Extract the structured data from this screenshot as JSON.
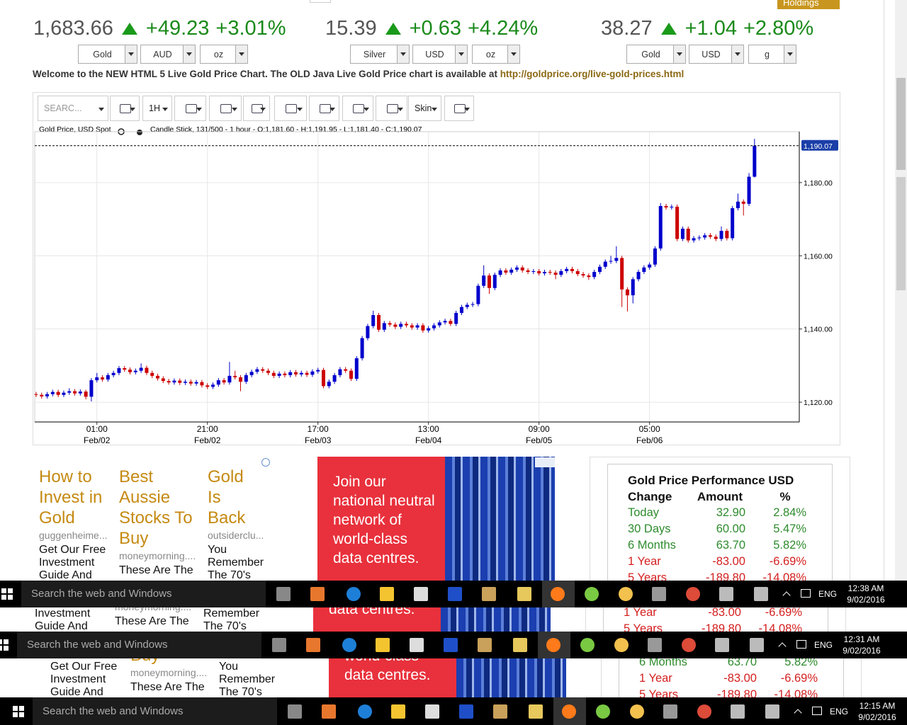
{
  "tickers": [
    {
      "price": "1,683.66",
      "change": "+49.23",
      "percent": "+3.01%",
      "selects": [
        "Gold",
        "AUD",
        "oz"
      ]
    },
    {
      "price": "15.39",
      "change": "+0.63",
      "percent": "+4.24%",
      "selects": [
        "Silver",
        "USD",
        "oz"
      ]
    },
    {
      "price": "38.27",
      "change": "+1.04",
      "percent": "+2.80%",
      "selects": [
        "Gold",
        "USD",
        "g"
      ]
    }
  ],
  "holdings": "Holdings",
  "welcome": "Welcome to the NEW HTML 5 Live Gold Price Chart. The OLD Java Live Gold Price chart is available at ",
  "welcome_link": "http://goldprice.org/live-gold-prices.html",
  "toolbar": {
    "search": "SEARC...",
    "interval": "1H",
    "skin": "Skin"
  },
  "chart_data": {
    "type": "candlestick",
    "title": "Gold Price, USD Spot",
    "subtitle": "Candle Stick, 131/500 - 1 hour - O:1,181.60 - H:1,191.95 - L:1,181.40 - C:1,190.07",
    "up_color": "#0000cc",
    "down_color": "#cc0000",
    "grid": true,
    "open": [
      1122.2,
      1122.0,
      1121.6,
      1122.2,
      1122.8,
      1122.0,
      1122.6,
      1123.0,
      1122.4,
      1122.9,
      1121.5,
      1126.0,
      1126.8,
      1126.2,
      1127.4,
      1128.0,
      1129.3,
      1128.9,
      1128.2,
      1128.6,
      1129.4,
      1128.0,
      1127.2,
      1126.5,
      1125.8,
      1125.4,
      1125.9,
      1125.3,
      1125.6,
      1125.1,
      1125.5,
      1124.6,
      1124.2,
      1124.8,
      1126.0,
      1125.4,
      1127.2,
      1126.8,
      1125.6,
      1127.4,
      1128.3,
      1129.0,
      1128.6,
      1128.0,
      1127.2,
      1127.8,
      1127.4,
      1128.2,
      1127.6,
      1128.0,
      1127.5,
      1128.4,
      1128.8,
      1124.4,
      1125.6,
      1127.4,
      1129.0,
      1128.6,
      1126.4,
      1132.0,
      1137.5,
      1140.8,
      1143.8,
      1139.8,
      1141.6,
      1141.2,
      1140.6,
      1141.4,
      1141.0,
      1140.4,
      1141.0,
      1139.6,
      1140.2,
      1141.0,
      1141.8,
      1142.2,
      1141.4,
      1144.4,
      1146.0,
      1146.6,
      1146.8,
      1151.8,
      1154.6,
      1151.2,
      1154.8,
      1156.0,
      1155.4,
      1156.2,
      1156.8,
      1156.0,
      1155.6,
      1155.8,
      1155.2,
      1155.6,
      1155.4,
      1154.8,
      1155.8,
      1156.4,
      1155.8,
      1155.0,
      1154.6,
      1154.2,
      1155.6,
      1157.0,
      1158.4,
      1158.6,
      1159.4,
      1150.8,
      1149.2,
      1153.6,
      1155.6,
      1156.8,
      1157.6,
      1162.0,
      1173.6,
      1173.2,
      1173.4,
      1164.6,
      1167.4,
      1164.2,
      1164.8,
      1165.0,
      1165.6,
      1165.2,
      1164.6,
      1166.8,
      1164.8,
      1173.0,
      1174.8,
      1174.2,
      1181.6
    ],
    "high": [
      1122.8,
      1122.6,
      1122.8,
      1123.4,
      1123.4,
      1123.2,
      1123.8,
      1123.6,
      1123.5,
      1123.4,
      1126.6,
      1128.0,
      1127.4,
      1128.0,
      1128.6,
      1129.9,
      1129.9,
      1129.5,
      1129.2,
      1130.6,
      1130.0,
      1128.6,
      1127.8,
      1127.1,
      1126.4,
      1126.5,
      1126.5,
      1126.2,
      1126.2,
      1126.1,
      1126.1,
      1125.2,
      1125.4,
      1126.6,
      1126.6,
      1131.0,
      1128.6,
      1127.4,
      1128.0,
      1128.9,
      1129.6,
      1129.6,
      1129.2,
      1128.6,
      1128.4,
      1128.4,
      1128.8,
      1128.8,
      1128.6,
      1128.6,
      1129.0,
      1129.4,
      1129.4,
      1126.2,
      1128.0,
      1129.6,
      1129.6,
      1129.2,
      1132.6,
      1138.1,
      1141.4,
      1145.0,
      1144.4,
      1142.2,
      1142.2,
      1141.8,
      1142.0,
      1142.0,
      1141.6,
      1141.6,
      1141.6,
      1140.8,
      1141.6,
      1142.4,
      1142.8,
      1142.8,
      1145.0,
      1146.6,
      1147.2,
      1147.4,
      1152.4,
      1157.4,
      1155.2,
      1155.4,
      1156.6,
      1156.6,
      1156.8,
      1157.4,
      1157.4,
      1156.6,
      1156.4,
      1156.4,
      1156.2,
      1156.2,
      1156.0,
      1156.4,
      1157.0,
      1157.0,
      1156.4,
      1155.6,
      1155.2,
      1156.2,
      1157.6,
      1159.0,
      1160.0,
      1162.6,
      1160.0,
      1151.4,
      1154.2,
      1156.2,
      1157.4,
      1158.2,
      1162.6,
      1174.4,
      1174.2,
      1174.0,
      1174.0,
      1168.0,
      1168.0,
      1165.4,
      1165.6,
      1166.2,
      1166.2,
      1165.8,
      1168.0,
      1167.4,
      1173.6,
      1177.0,
      1175.4,
      1182.6,
      1191.95
    ],
    "low": [
      1121.4,
      1121.0,
      1121.0,
      1121.6,
      1121.4,
      1121.4,
      1122.0,
      1121.8,
      1121.8,
      1120.8,
      1120.2,
      1125.4,
      1125.6,
      1125.6,
      1126.8,
      1127.4,
      1128.3,
      1127.6,
      1127.6,
      1128.0,
      1127.4,
      1126.6,
      1125.9,
      1125.2,
      1124.8,
      1124.8,
      1124.7,
      1124.7,
      1124.5,
      1124.5,
      1124.0,
      1123.6,
      1123.6,
      1124.2,
      1124.8,
      1124.8,
      1126.2,
      1123.0,
      1125.0,
      1126.8,
      1127.7,
      1128.0,
      1127.4,
      1126.6,
      1126.6,
      1126.8,
      1126.8,
      1127.0,
      1127.0,
      1126.9,
      1126.9,
      1127.8,
      1123.8,
      1123.8,
      1125.0,
      1126.8,
      1128.0,
      1125.8,
      1125.8,
      1131.4,
      1136.9,
      1140.2,
      1139.2,
      1139.2,
      1140.6,
      1140.0,
      1140.0,
      1140.4,
      1139.8,
      1139.8,
      1139.0,
      1139.0,
      1139.6,
      1140.4,
      1141.2,
      1140.8,
      1140.8,
      1143.8,
      1145.4,
      1146.0,
      1146.2,
      1151.2,
      1149.6,
      1150.6,
      1154.2,
      1154.8,
      1154.8,
      1155.6,
      1155.4,
      1155.0,
      1155.0,
      1154.6,
      1154.6,
      1154.8,
      1153.6,
      1154.2,
      1155.2,
      1155.2,
      1154.4,
      1154.0,
      1153.4,
      1153.6,
      1155.0,
      1156.4,
      1157.8,
      1158.0,
      1146.0,
      1144.8,
      1147.0,
      1153.0,
      1155.0,
      1156.2,
      1157.0,
      1161.4,
      1172.6,
      1172.6,
      1164.0,
      1164.0,
      1163.6,
      1163.6,
      1164.2,
      1164.4,
      1164.6,
      1164.0,
      1164.0,
      1164.2,
      1164.2,
      1172.4,
      1171.0,
      1173.6,
      1181.4
    ],
    "close": [
      1122.0,
      1121.6,
      1122.2,
      1122.8,
      1122.0,
      1122.6,
      1123.0,
      1122.4,
      1122.9,
      1121.5,
      1126.0,
      1126.8,
      1126.2,
      1127.4,
      1128.0,
      1129.3,
      1128.9,
      1128.2,
      1128.6,
      1129.4,
      1128.0,
      1127.2,
      1126.5,
      1125.8,
      1125.4,
      1125.9,
      1125.3,
      1125.6,
      1125.1,
      1125.5,
      1124.6,
      1124.2,
      1124.8,
      1126.0,
      1125.4,
      1127.2,
      1126.8,
      1125.6,
      1127.4,
      1128.3,
      1129.0,
      1128.6,
      1128.0,
      1127.2,
      1127.8,
      1127.4,
      1128.2,
      1127.6,
      1128.0,
      1127.5,
      1128.4,
      1128.8,
      1124.4,
      1125.6,
      1127.4,
      1129.0,
      1128.6,
      1126.4,
      1132.0,
      1137.5,
      1140.8,
      1143.8,
      1139.8,
      1141.6,
      1141.2,
      1140.6,
      1141.4,
      1141.0,
      1140.4,
      1141.0,
      1139.6,
      1140.2,
      1141.0,
      1141.8,
      1142.2,
      1141.4,
      1144.4,
      1146.0,
      1146.6,
      1146.8,
      1151.8,
      1154.6,
      1151.2,
      1154.8,
      1156.0,
      1155.4,
      1156.2,
      1156.8,
      1156.0,
      1155.6,
      1155.8,
      1155.2,
      1155.6,
      1155.4,
      1154.8,
      1155.8,
      1156.4,
      1155.8,
      1155.0,
      1154.6,
      1154.2,
      1155.6,
      1157.0,
      1158.4,
      1158.6,
      1159.4,
      1150.8,
      1149.2,
      1153.6,
      1155.6,
      1156.8,
      1157.6,
      1162.0,
      1173.6,
      1173.2,
      1173.4,
      1164.6,
      1167.4,
      1164.2,
      1164.8,
      1165.0,
      1165.6,
      1165.2,
      1164.6,
      1166.8,
      1164.8,
      1173.0,
      1174.8,
      1174.2,
      1181.6,
      1190.07
    ],
    "last_label": "1,190.07",
    "xlim": [
      -0.25,
      138.1
    ],
    "ylim": [
      1114.6,
      1193.9
    ],
    "xticks": [
      {
        "value": 11,
        "label": "01:00"
      },
      {
        "value": 31,
        "label": "21:00"
      },
      {
        "value": 51,
        "label": "17:00"
      },
      {
        "value": 71,
        "label": "13:00"
      },
      {
        "value": 91,
        "label": "09:00"
      },
      {
        "value": 111,
        "label": "05:00"
      }
    ],
    "xtick_dates": [
      "Feb/02",
      "Feb/02",
      "Feb/03",
      "Feb/04",
      "Feb/05",
      "Feb/06"
    ],
    "yticks": [
      {
        "value": 1120,
        "label": "1,120.00"
      },
      {
        "value": 1140,
        "label": "1,140.00"
      },
      {
        "value": 1160,
        "label": "1,160.00"
      },
      {
        "value": 1180,
        "label": "1,180.00"
      }
    ]
  },
  "ads": [
    {
      "title": "How to Invest in Gold",
      "source": "guggenheime...",
      "text": "Get Our Free Investment Guide And"
    },
    {
      "title": "Best Aussie Stocks To Buy",
      "source": "moneymorning....",
      "text": "These Are The"
    },
    {
      "title": "Gold Is Back",
      "source": "outsiderclu...",
      "text": "You Remember The 70's"
    }
  ],
  "banner": "Join our national neutral network of world-class data centres.",
  "performance": {
    "title": "Gold Price Performance USD",
    "headers": [
      "Change",
      "Amount",
      "%"
    ],
    "rows": [
      {
        "label": "Today",
        "amount": "32.90",
        "percent": "2.84%",
        "color": "#2e8b2e"
      },
      {
        "label": "30 Days",
        "amount": "60.00",
        "percent": "5.47%",
        "color": "#2e8b2e"
      },
      {
        "label": "6 Months",
        "amount": "63.70",
        "percent": "5.82%",
        "color": "#2e8b2e"
      },
      {
        "label": "1 Year",
        "amount": "-83.00",
        "percent": "-6.69%",
        "color": "#d42020"
      },
      {
        "label": "5 Years",
        "amount": "-189.80",
        "percent": "-14.08%",
        "color": "#d42020"
      }
    ]
  },
  "taskbars": [
    {
      "search": "Search the web and Windows",
      "lang": "ENG",
      "time": "12:38 AM",
      "date": "9/02/2016"
    },
    {
      "search": "Search the web and Windows",
      "lang": "ENG",
      "time": "12:31 AM",
      "date": "9/02/2016"
    },
    {
      "search": "Search the web and Windows",
      "lang": "ENG",
      "time": "12:15 AM",
      "date": "9/02/2016"
    }
  ]
}
